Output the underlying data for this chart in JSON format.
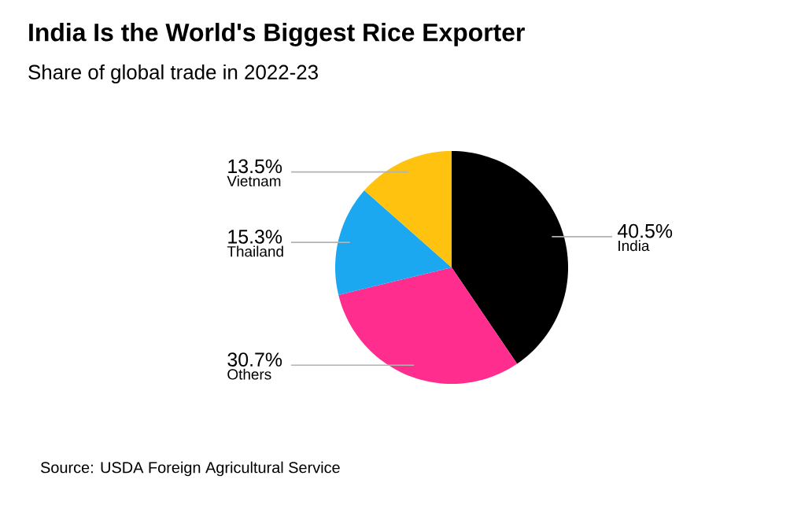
{
  "chart_data": {
    "type": "pie",
    "title": "India Is the World's Biggest Rice Exporter",
    "subtitle": "Share of global trade in 2022-23",
    "categories": [
      "India",
      "Others",
      "Thailand",
      "Vietnam"
    ],
    "values": [
      40.5,
      30.7,
      15.3,
      13.5
    ],
    "value_labels": [
      "40.5%",
      "30.7%",
      "15.3%",
      "13.5%"
    ],
    "colors": [
      "#000000",
      "#ff2d8e",
      "#1ba8f0",
      "#ffc20e"
    ],
    "annotations": [
      "Source: USDA Foreign Agricultural Service"
    ]
  }
}
